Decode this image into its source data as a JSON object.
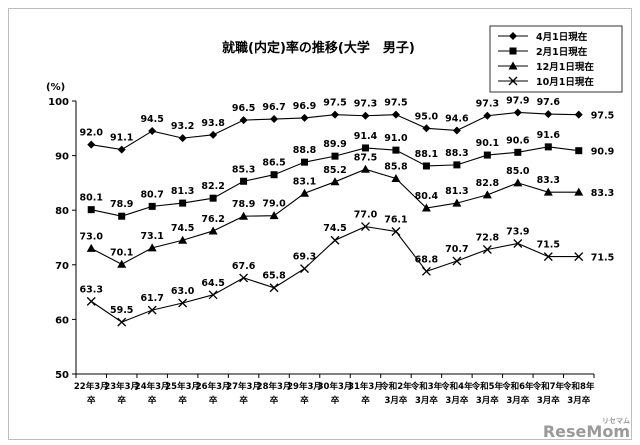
{
  "chart_data": {
    "type": "line",
    "title": "就職(内定)率の推移(大学　男子)",
    "ylabel": "(%)",
    "ylim": [
      50,
      100
    ],
    "yticks": [
      "50",
      "60",
      "70",
      "80",
      "90",
      "100"
    ],
    "grid": false,
    "legend_position": "top-right",
    "categories": [
      [
        "22年3月",
        "卒"
      ],
      [
        "23年3月",
        "卒"
      ],
      [
        "24年3月",
        "卒"
      ],
      [
        "25年3月",
        "卒"
      ],
      [
        "26年3月",
        "卒"
      ],
      [
        "27年3月",
        "卒"
      ],
      [
        "28年3月",
        "卒"
      ],
      [
        "29年3月",
        "卒"
      ],
      [
        "30年3月",
        "卒"
      ],
      [
        "31年3月",
        "卒"
      ],
      [
        "令和2年",
        "3月卒"
      ],
      [
        "令和3年",
        "3月卒"
      ],
      [
        "令和4年",
        "3月卒"
      ],
      [
        "令和5年",
        "3月卒"
      ],
      [
        "令和6年",
        "3月卒"
      ],
      [
        "令和7年",
        "3月卒"
      ],
      [
        "令和8年",
        "3月卒"
      ]
    ],
    "series": [
      {
        "name": "4月1日現在",
        "marker": "diamond",
        "values": [
          92.0,
          91.1,
          94.5,
          93.2,
          93.8,
          96.5,
          96.7,
          96.9,
          97.5,
          97.3,
          97.5,
          95.0,
          94.6,
          97.3,
          97.9,
          97.6,
          97.5
        ],
        "labels": [
          "92.0",
          "91.1",
          "94.5",
          "93.2",
          "93.8",
          "96.5",
          "96.7",
          "96.9",
          "97.5",
          "97.3",
          "97.5",
          "95.0",
          "94.6",
          "97.3",
          "97.9",
          "97.6",
          "97.5"
        ]
      },
      {
        "name": "2月1日現在",
        "marker": "square",
        "values": [
          80.1,
          78.9,
          80.7,
          81.3,
          82.2,
          85.3,
          86.5,
          88.8,
          89.9,
          91.4,
          91.0,
          88.1,
          88.3,
          90.1,
          90.6,
          91.6,
          90.9
        ],
        "labels": [
          "80.1",
          "78.9",
          "80.7",
          "81.3",
          "82.2",
          "85.3",
          "86.5",
          "88.8",
          "89.9",
          "91.4",
          "91.0",
          "88.1",
          "88.3",
          "90.1",
          "90.6",
          "91.6",
          "90.9"
        ]
      },
      {
        "name": "12月1日現在",
        "marker": "triangle",
        "values": [
          73.0,
          70.1,
          73.1,
          74.5,
          76.2,
          78.9,
          79.0,
          83.1,
          85.2,
          87.5,
          85.8,
          80.4,
          81.3,
          82.8,
          85.0,
          83.3,
          83.3
        ],
        "labels": [
          "73.0",
          "70.1",
          "73.1",
          "74.5",
          "76.2",
          "78.9",
          "79.0",
          "83.1",
          "85.2",
          "87.5",
          "85.8",
          "80.4",
          "81.3",
          "82.8",
          "85.0",
          "83.3",
          "83.3"
        ]
      },
      {
        "name": "10月1日現在",
        "marker": "x",
        "values": [
          63.3,
          59.5,
          61.7,
          63.0,
          64.5,
          67.6,
          65.8,
          69.3,
          74.5,
          77.0,
          76.1,
          68.8,
          70.7,
          72.8,
          73.9,
          71.5,
          71.5
        ],
        "labels": [
          "63.3",
          "59.5",
          "61.7",
          "63.0",
          "64.5",
          "67.6",
          "65.8",
          "69.3",
          "74.5",
          "77.0",
          "76.1",
          "68.8",
          "70.7",
          "72.8",
          "73.9",
          "71.5",
          "71.5"
        ]
      }
    ],
    "colors": {
      "line": "#000000",
      "frame": "#bdbdbd"
    }
  },
  "watermark": {
    "main": "ReseMom",
    "small": "リセマム"
  }
}
